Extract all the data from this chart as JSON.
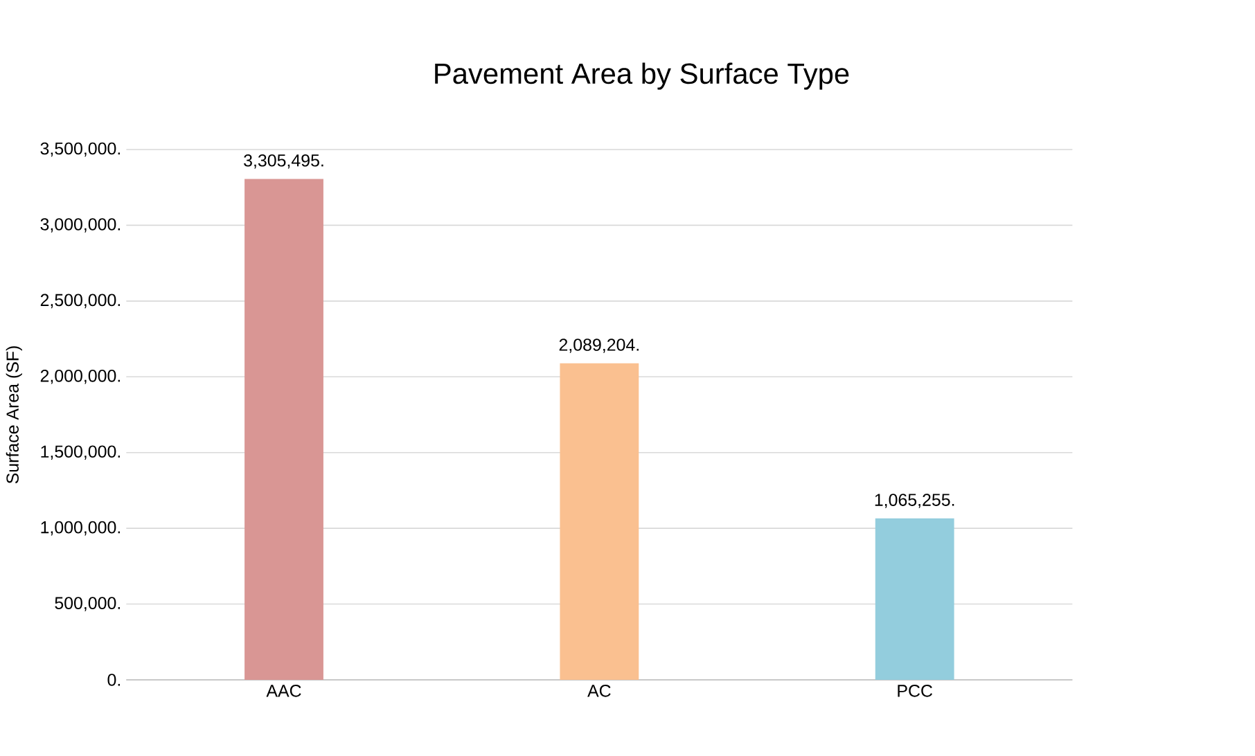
{
  "chart_data": {
    "type": "bar",
    "title": "Pavement Area by Surface Type",
    "ylabel": "Surface Area (SF)",
    "categories": [
      "AAC",
      "AC",
      "PCC"
    ],
    "values": [
      3305495,
      2089204,
      1065255
    ],
    "colors": [
      "#d99694",
      "#fac090",
      "#93cddd"
    ],
    "value_labels": [
      "3,305,495.",
      "2,089,204.",
      "1,065,255."
    ],
    "ylim": [
      0,
      3500000
    ],
    "yticks": [
      {
        "value": 0,
        "label": "0."
      },
      {
        "value": 500000,
        "label": "500,000."
      },
      {
        "value": 1000000,
        "label": "1,000,000."
      },
      {
        "value": 1500000,
        "label": "1,500,000."
      },
      {
        "value": 2000000,
        "label": "2,000,000."
      },
      {
        "value": 2500000,
        "label": "2,500,000."
      },
      {
        "value": 3000000,
        "label": "3,000,000."
      },
      {
        "value": 3500000,
        "label": "3,500,000."
      }
    ],
    "grid": "y"
  }
}
